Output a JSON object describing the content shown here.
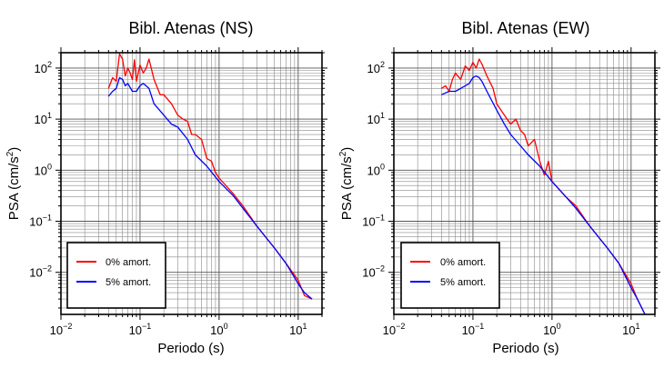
{
  "charts": [
    {
      "title": "Bibl. Atenas (NS)",
      "xlabel": "Periodo (s)",
      "ylabel_main": "PSA (cm/s",
      "ylabel_sup": "2",
      "ylabel_end": ")"
    },
    {
      "title": "Bibl. Atenas (EW)",
      "xlabel": "Periodo (s)",
      "ylabel_main": "PSA (cm/s",
      "ylabel_sup": "2",
      "ylabel_end": ")"
    }
  ],
  "chart_data": [
    {
      "type": "line",
      "title": "Bibl. Atenas (NS)",
      "xlabel": "Periodo (s)",
      "ylabel": "PSA (cm/s2)",
      "xscale": "log",
      "yscale": "log",
      "xlim": [
        0.01,
        20
      ],
      "ylim": [
        0.0015,
        200
      ],
      "grid": true,
      "legend": "bottom-left",
      "x_ticks": [
        {
          "value": 0.01,
          "base": "10",
          "exp": "−2"
        },
        {
          "value": 0.1,
          "base": "10",
          "exp": "−1"
        },
        {
          "value": 1,
          "base": "10",
          "exp": "0"
        },
        {
          "value": 10,
          "base": "10",
          "exp": "1"
        }
      ],
      "y_ticks": [
        {
          "value": 0.01,
          "base": "10",
          "exp": "−2"
        },
        {
          "value": 0.1,
          "base": "10",
          "exp": "−1"
        },
        {
          "value": 1,
          "base": "10",
          "exp": "0"
        },
        {
          "value": 10,
          "base": "10",
          "exp": "1"
        },
        {
          "value": 100,
          "base": "10",
          "exp": "2"
        }
      ],
      "series": [
        {
          "name": "0% amort.",
          "color": "#ff0000",
          "x": [
            0.04,
            0.045,
            0.05,
            0.055,
            0.06,
            0.065,
            0.07,
            0.075,
            0.08,
            0.085,
            0.09,
            0.1,
            0.11,
            0.12,
            0.13,
            0.15,
            0.18,
            0.2,
            0.25,
            0.3,
            0.35,
            0.4,
            0.45,
            0.5,
            0.6,
            0.7,
            0.8,
            0.9,
            1.0,
            1.5,
            2,
            3,
            5,
            7,
            10,
            12,
            15
          ],
          "y": [
            40,
            65,
            55,
            190,
            150,
            70,
            100,
            80,
            60,
            145,
            55,
            115,
            80,
            100,
            150,
            60,
            30,
            30,
            20,
            12,
            10,
            9,
            5,
            5,
            4,
            1.7,
            1.5,
            0.9,
            0.7,
            0.35,
            0.2,
            0.08,
            0.03,
            0.015,
            0.007,
            0.0035,
            0.003
          ]
        },
        {
          "name": "5% amort.",
          "color": "#0000ff",
          "x": [
            0.04,
            0.045,
            0.05,
            0.055,
            0.06,
            0.065,
            0.07,
            0.08,
            0.09,
            0.1,
            0.11,
            0.13,
            0.15,
            0.2,
            0.25,
            0.3,
            0.4,
            0.5,
            0.7,
            1.0,
            1.5,
            2,
            3,
            5,
            7,
            10,
            12,
            15
          ],
          "y": [
            28,
            35,
            40,
            65,
            60,
            45,
            50,
            35,
            35,
            45,
            50,
            40,
            20,
            12,
            8,
            7,
            4,
            2,
            1.2,
            0.6,
            0.32,
            0.18,
            0.08,
            0.03,
            0.015,
            0.006,
            0.004,
            0.003
          ]
        }
      ]
    },
    {
      "type": "line",
      "title": "Bibl. Atenas (EW)",
      "xlabel": "Periodo (s)",
      "ylabel": "PSA (cm/s2)",
      "xscale": "log",
      "yscale": "log",
      "xlim": [
        0.01,
        20
      ],
      "ylim": [
        0.0015,
        200
      ],
      "grid": true,
      "legend": "bottom-left",
      "x_ticks": [
        {
          "value": 0.01,
          "base": "10",
          "exp": "−2"
        },
        {
          "value": 0.1,
          "base": "10",
          "exp": "−1"
        },
        {
          "value": 1,
          "base": "10",
          "exp": "0"
        },
        {
          "value": 10,
          "base": "10",
          "exp": "1"
        }
      ],
      "y_ticks": [
        {
          "value": 0.01,
          "base": "10",
          "exp": "−2"
        },
        {
          "value": 0.1,
          "base": "10",
          "exp": "−1"
        },
        {
          "value": 1,
          "base": "10",
          "exp": "0"
        },
        {
          "value": 10,
          "base": "10",
          "exp": "1"
        },
        {
          "value": 100,
          "base": "10",
          "exp": "2"
        }
      ],
      "series": [
        {
          "name": "0% amort.",
          "color": "#ff0000",
          "x": [
            0.04,
            0.045,
            0.05,
            0.055,
            0.06,
            0.07,
            0.08,
            0.09,
            0.1,
            0.11,
            0.12,
            0.13,
            0.15,
            0.18,
            0.2,
            0.25,
            0.3,
            0.35,
            0.4,
            0.45,
            0.5,
            0.6,
            0.7,
            0.8,
            0.9,
            1.0,
            1.5,
            2,
            3,
            5,
            7,
            10,
            12,
            15
          ],
          "y": [
            40,
            45,
            35,
            60,
            80,
            60,
            110,
            90,
            130,
            100,
            150,
            120,
            70,
            40,
            20,
            12,
            8,
            10,
            6,
            5,
            3,
            4,
            1.5,
            0.8,
            1.5,
            0.6,
            0.3,
            0.2,
            0.08,
            0.03,
            0.015,
            0.006,
            0.003,
            0.0015
          ]
        },
        {
          "name": "5% amort.",
          "color": "#0000ff",
          "x": [
            0.04,
            0.05,
            0.06,
            0.07,
            0.08,
            0.09,
            0.1,
            0.11,
            0.12,
            0.13,
            0.15,
            0.2,
            0.25,
            0.3,
            0.4,
            0.5,
            0.7,
            1.0,
            1.5,
            2,
            3,
            5,
            7,
            10,
            12,
            15
          ],
          "y": [
            30,
            35,
            35,
            40,
            45,
            50,
            65,
            70,
            65,
            55,
            35,
            15,
            8,
            5,
            3,
            2,
            1.2,
            0.6,
            0.3,
            0.18,
            0.08,
            0.03,
            0.015,
            0.005,
            0.003,
            0.0015
          ]
        }
      ]
    }
  ]
}
